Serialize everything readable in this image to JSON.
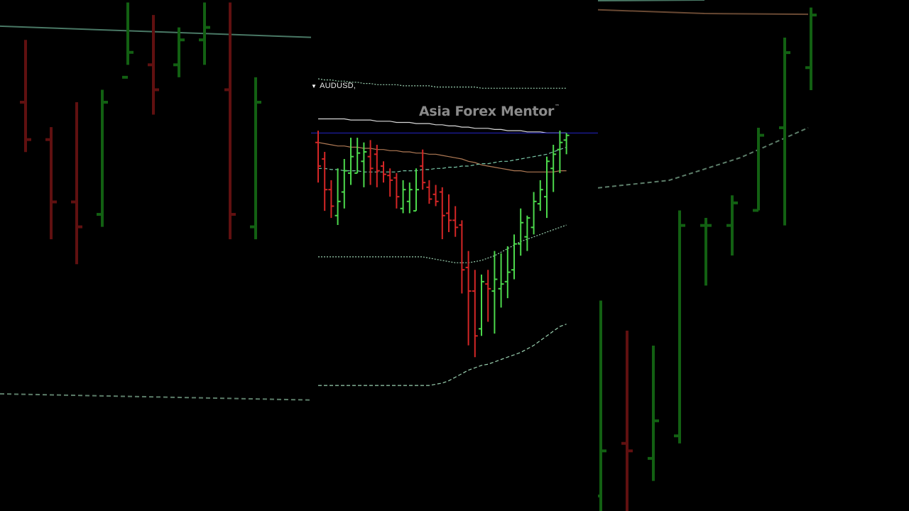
{
  "symbol": {
    "name": "AUDUSD,"
  },
  "watermark": {
    "text": "Asia Forex Mentor",
    "trademark": "™"
  },
  "colors": {
    "background": "#000000",
    "bull": "#4cd94c",
    "bear": "#d42626",
    "bull_bg": "#1fa01f",
    "bear_bg": "#a01c1c",
    "ma_white": "#d8d8d8",
    "ma_orange": "#b07a55",
    "ma_teal": "#7ac8a8",
    "band": "#9ad0b0",
    "price_line": "#2424c8"
  },
  "chart_data": {
    "type": "ohlc",
    "symbol": "AUDUSD",
    "axes_visible": false,
    "grid": false,
    "bars": [
      {
        "o": 0.7072,
        "h": 0.7082,
        "l": 0.7038,
        "c": 0.7052
      },
      {
        "o": 0.7058,
        "h": 0.7064,
        "l": 0.7014,
        "c": 0.7032
      },
      {
        "o": 0.7032,
        "h": 0.704,
        "l": 0.7008,
        "c": 0.7018
      },
      {
        "o": 0.701,
        "h": 0.705,
        "l": 0.7002,
        "c": 0.7022
      },
      {
        "o": 0.703,
        "h": 0.7058,
        "l": 0.7016,
        "c": 0.7048
      },
      {
        "o": 0.7046,
        "h": 0.7076,
        "l": 0.7036,
        "c": 0.706
      },
      {
        "o": 0.7046,
        "h": 0.7076,
        "l": 0.7046,
        "c": 0.7063
      },
      {
        "o": 0.7056,
        "h": 0.7072,
        "l": 0.7034,
        "c": 0.7064
      },
      {
        "o": 0.706,
        "h": 0.7074,
        "l": 0.7036,
        "c": 0.705
      },
      {
        "o": 0.7062,
        "h": 0.707,
        "l": 0.7034,
        "c": 0.7048
      },
      {
        "o": 0.7052,
        "h": 0.7056,
        "l": 0.7038,
        "c": 0.7045
      },
      {
        "o": 0.7044,
        "h": 0.705,
        "l": 0.7026,
        "c": 0.704
      },
      {
        "o": 0.7042,
        "h": 0.7046,
        "l": 0.7016,
        "c": 0.7026
      },
      {
        "o": 0.7016,
        "h": 0.704,
        "l": 0.7012,
        "c": 0.7032
      },
      {
        "o": 0.7022,
        "h": 0.7038,
        "l": 0.7012,
        "c": 0.7032
      },
      {
        "o": 0.7014,
        "h": 0.705,
        "l": 0.7014,
        "c": 0.7032
      },
      {
        "o": 0.7052,
        "h": 0.7066,
        "l": 0.7032,
        "c": 0.7038
      },
      {
        "o": 0.7034,
        "h": 0.704,
        "l": 0.702,
        "c": 0.7024
      },
      {
        "o": 0.7028,
        "h": 0.7036,
        "l": 0.7018,
        "c": 0.7022
      },
      {
        "o": 0.703,
        "h": 0.7034,
        "l": 0.699,
        "c": 0.701
      },
      {
        "o": 0.7012,
        "h": 0.7028,
        "l": 0.6996,
        "c": 0.7006
      },
      {
        "o": 0.7006,
        "h": 0.7018,
        "l": 0.6992,
        "c": 0.7
      },
      {
        "o": 0.7002,
        "h": 0.7006,
        "l": 0.6944,
        "c": 0.6964
      },
      {
        "o": 0.6966,
        "h": 0.698,
        "l": 0.69,
        "c": 0.6946
      },
      {
        "o": 0.6946,
        "h": 0.6964,
        "l": 0.689,
        "c": 0.6908
      },
      {
        "o": 0.6914,
        "h": 0.696,
        "l": 0.6908,
        "c": 0.6954
      },
      {
        "o": 0.6952,
        "h": 0.6964,
        "l": 0.692,
        "c": 0.6948
      },
      {
        "o": 0.6946,
        "h": 0.698,
        "l": 0.691,
        "c": 0.6956
      },
      {
        "o": 0.6948,
        "h": 0.6978,
        "l": 0.6932,
        "c": 0.6952
      },
      {
        "o": 0.6954,
        "h": 0.6984,
        "l": 0.694,
        "c": 0.6962
      },
      {
        "o": 0.6964,
        "h": 0.6994,
        "l": 0.6956,
        "c": 0.6986
      },
      {
        "o": 0.6986,
        "h": 0.7016,
        "l": 0.6976,
        "c": 0.7004
      },
      {
        "o": 0.6992,
        "h": 0.701,
        "l": 0.698,
        "c": 0.7008
      },
      {
        "o": 0.7,
        "h": 0.703,
        "l": 0.6994,
        "c": 0.7022
      },
      {
        "o": 0.702,
        "h": 0.704,
        "l": 0.7014,
        "c": 0.7032
      },
      {
        "o": 0.7026,
        "h": 0.706,
        "l": 0.7008,
        "c": 0.7056
      },
      {
        "o": 0.705,
        "h": 0.707,
        "l": 0.703,
        "c": 0.7062
      },
      {
        "o": 0.7066,
        "h": 0.7082,
        "l": 0.7046,
        "c": 0.7072
      },
      {
        "o": 0.7074,
        "h": 0.708,
        "l": 0.7062,
        "c": 0.7078
      }
    ],
    "current_price": 0.708,
    "indicators": [
      {
        "kind": "moving_average",
        "color_key": "ma_white",
        "style": "solid",
        "values": [
          0.7092,
          0.7092,
          0.7092,
          0.7092,
          0.7092,
          0.7091,
          0.7091,
          0.7091,
          0.7091,
          0.709,
          0.709,
          0.709,
          0.7089,
          0.7089,
          0.7089,
          0.7088,
          0.7088,
          0.7088,
          0.7087,
          0.7087,
          0.7086,
          0.7086,
          0.7085,
          0.7085,
          0.7084,
          0.7084,
          0.7084,
          0.7083,
          0.7083,
          0.7082,
          0.7082,
          0.7082,
          0.7081,
          0.7081,
          0.7081,
          0.708,
          0.708,
          0.708,
          0.708
        ]
      },
      {
        "kind": "moving_average",
        "color_key": "ma_orange",
        "style": "solid",
        "values": [
          0.7072,
          0.7071,
          0.707,
          0.7069,
          0.7069,
          0.7068,
          0.7068,
          0.7067,
          0.7067,
          0.7066,
          0.7066,
          0.7065,
          0.7065,
          0.7064,
          0.7064,
          0.7063,
          0.7063,
          0.7062,
          0.7062,
          0.7061,
          0.706,
          0.7059,
          0.7058,
          0.7056,
          0.7055,
          0.7053,
          0.7052,
          0.7051,
          0.705,
          0.7049,
          0.7048,
          0.7048,
          0.7047,
          0.7047,
          0.7047,
          0.7047,
          0.7047,
          0.7048,
          0.7048
        ]
      },
      {
        "kind": "moving_average",
        "color_key": "ma_teal",
        "style": "dashed",
        "values": [
          0.705,
          0.705,
          0.7049,
          0.7049,
          0.7048,
          0.7048,
          0.7048,
          0.7047,
          0.7047,
          0.7047,
          0.7047,
          0.7047,
          0.7047,
          0.7048,
          0.7048,
          0.7048,
          0.7049,
          0.7049,
          0.705,
          0.705,
          0.7051,
          0.7051,
          0.7052,
          0.7052,
          0.7053,
          0.7054,
          0.7054,
          0.7055,
          0.7056,
          0.7056,
          0.7057,
          0.7058,
          0.7059,
          0.706,
          0.7061,
          0.7062,
          0.7064,
          0.7066,
          0.7068
        ]
      },
      {
        "kind": "band_upper",
        "color_key": "band",
        "style": "dotted",
        "values": [
          0.7126,
          0.7125,
          0.7125,
          0.7124,
          0.7124,
          0.7123,
          0.7123,
          0.7122,
          0.7122,
          0.7121,
          0.7121,
          0.7121,
          0.7121,
          0.712,
          0.712,
          0.712,
          0.712,
          0.712,
          0.7119,
          0.7119,
          0.7119,
          0.7119,
          0.7119,
          0.7119,
          0.7119,
          0.7118,
          0.7118,
          0.7118,
          0.7118,
          0.7118,
          0.7118,
          0.7118,
          0.7118,
          0.7118,
          0.7118,
          0.7118,
          0.7118,
          0.7118,
          0.7118
        ]
      },
      {
        "kind": "band_middle",
        "color_key": "band",
        "style": "dotted",
        "values": [
          0.6975,
          0.6975,
          0.6975,
          0.6975,
          0.6975,
          0.6975,
          0.6975,
          0.6975,
          0.6975,
          0.6975,
          0.6975,
          0.6975,
          0.6975,
          0.6975,
          0.6975,
          0.6975,
          0.6975,
          0.6974,
          0.6973,
          0.6972,
          0.6971,
          0.697,
          0.697,
          0.697,
          0.6971,
          0.6972,
          0.6974,
          0.6976,
          0.6979,
          0.6982,
          0.6985,
          0.6988,
          0.699,
          0.6992,
          0.6994,
          0.6996,
          0.6998,
          0.7,
          0.7002
        ]
      },
      {
        "kind": "band_lower",
        "color_key": "band",
        "style": "dashed",
        "values": [
          0.6866,
          0.6866,
          0.6866,
          0.6866,
          0.6866,
          0.6866,
          0.6866,
          0.6866,
          0.6866,
          0.6866,
          0.6866,
          0.6866,
          0.6866,
          0.6866,
          0.6866,
          0.6866,
          0.6866,
          0.6866,
          0.6867,
          0.6868,
          0.687,
          0.6873,
          0.6876,
          0.6879,
          0.6881,
          0.6883,
          0.6884,
          0.6886,
          0.6888,
          0.689,
          0.6892,
          0.6894,
          0.6897,
          0.69,
          0.6904,
          0.6908,
          0.6912,
          0.6916,
          0.6918
        ]
      }
    ],
    "background_left": {
      "bars": [
        {
          "o": 0.718,
          "h": 0.723,
          "l": 0.714,
          "c": 0.715
        },
        {
          "o": 0.715,
          "h": 0.716,
          "l": 0.707,
          "c": 0.71
        },
        {
          "o": 0.71,
          "h": 0.718,
          "l": 0.705,
          "c": 0.708
        },
        {
          "o": 0.709,
          "h": 0.719,
          "l": 0.708,
          "c": 0.718
        },
        {
          "o": 0.72,
          "h": 0.726,
          "l": 0.721,
          "c": 0.722
        },
        {
          "o": 0.721,
          "h": 0.725,
          "l": 0.717,
          "c": 0.719
        },
        {
          "o": 0.721,
          "h": 0.724,
          "l": 0.72,
          "c": 0.723
        },
        {
          "o": 0.723,
          "h": 0.726,
          "l": 0.721,
          "c": 0.724
        },
        {
          "o": 0.719,
          "h": 0.726,
          "l": 0.707,
          "c": 0.709
        },
        {
          "o": 0.708,
          "h": 0.72,
          "l": 0.707,
          "c": 0.718
        }
      ]
    },
    "background_right": {
      "bars": [
        {
          "o": 0.65,
          "h": 0.676,
          "l": 0.646,
          "c": 0.656
        },
        {
          "o": 0.657,
          "h": 0.672,
          "l": 0.646,
          "c": 0.656
        },
        {
          "o": 0.655,
          "h": 0.67,
          "l": 0.652,
          "c": 0.66
        },
        {
          "o": 0.658,
          "h": 0.688,
          "l": 0.657,
          "c": 0.686
        },
        {
          "o": 0.686,
          "h": 0.687,
          "l": 0.678,
          "c": 0.686
        },
        {
          "o": 0.686,
          "h": 0.69,
          "l": 0.682,
          "c": 0.689
        },
        {
          "o": 0.688,
          "h": 0.699,
          "l": 0.688,
          "c": 0.698
        },
        {
          "o": 0.699,
          "h": 0.711,
          "l": 0.686,
          "c": 0.709
        },
        {
          "o": 0.707,
          "h": 0.715,
          "l": 0.704,
          "c": 0.714
        }
      ]
    }
  }
}
